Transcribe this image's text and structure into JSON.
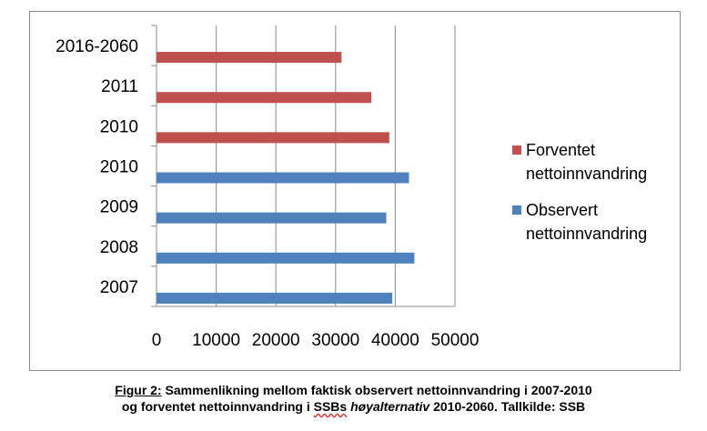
{
  "chart_data": {
    "type": "bar",
    "orientation": "horizontal",
    "categories": [
      "2007",
      "2008",
      "2009",
      "2010",
      "2010",
      "2011",
      "2016-2060"
    ],
    "series": [
      {
        "name": "Observert nettoinnvandring",
        "name_lines": [
          "Observert",
          "nettoinnvandring"
        ],
        "color": "#4F81BD",
        "values": [
          39500,
          43200,
          38500,
          42300,
          null,
          null,
          null
        ]
      },
      {
        "name": "Forventet nettoinnvandring",
        "name_lines": [
          "Forventet",
          "nettoinnvandring"
        ],
        "color": "#C0504D",
        "values": [
          null,
          null,
          null,
          null,
          39000,
          36000,
          31000
        ]
      }
    ],
    "xlim": [
      0,
      50000
    ],
    "xticks": [
      "0",
      "10000",
      "20000",
      "30000",
      "40000",
      "50000"
    ],
    "grid": "vertical",
    "legend_position": "right"
  },
  "caption": {
    "figure_label": "Figur 2:",
    "line1_rest": " Sammenlikning mellom faktisk observert nettoinnvandring i 2007-2010",
    "line2_start": "og forventet nettoinnvandring i ",
    "line2_ssbs": "SSBs",
    "line2_space": " ",
    "line2_italic": "høyalternativ",
    "line2_end": " 2010-2060.  Tallkilde: SSB"
  }
}
